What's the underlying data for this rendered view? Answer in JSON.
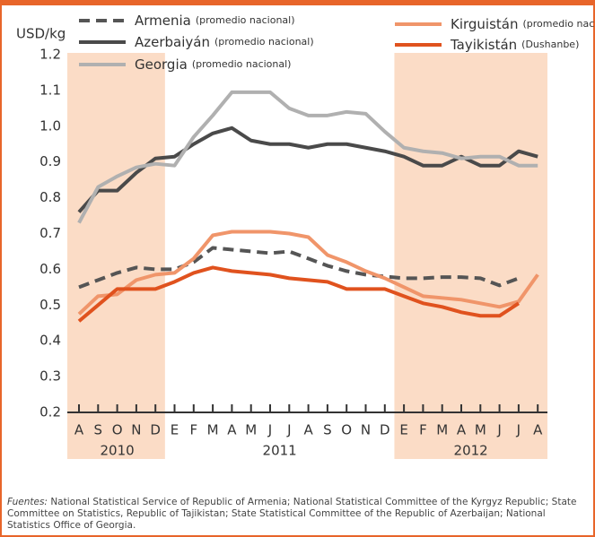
{
  "chart_data": {
    "type": "line",
    "y_label": "USD/kg",
    "categories": [
      "A",
      "S",
      "O",
      "N",
      "D",
      "E",
      "F",
      "M",
      "A",
      "M",
      "J",
      "J",
      "A",
      "S",
      "O",
      "N",
      "D",
      "E",
      "F",
      "M",
      "A",
      "M",
      "J",
      "J",
      "A"
    ],
    "years": [
      "2010",
      "2011",
      "2012"
    ],
    "ylim": [
      0.2,
      1.2
    ],
    "yticks": [
      0.2,
      0.3,
      0.4,
      0.5,
      0.6,
      0.7,
      0.8,
      0.9,
      {
        "value": 1,
        "label": "1.0"
      },
      1.1,
      1.2
    ],
    "series": [
      {
        "name": "Armenia",
        "note": "(promedio nacional)",
        "color": "#555555",
        "dashed": true,
        "values": [
          0.55,
          0.57,
          0.59,
          0.605,
          0.6,
          0.6,
          0.62,
          0.66,
          0.655,
          0.65,
          0.645,
          0.65,
          0.63,
          0.61,
          0.595,
          0.585,
          0.58,
          0.575,
          0.575,
          0.578,
          0.578,
          0.575,
          0.555,
          0.575,
          null
        ]
      },
      {
        "name": "Azerbaiyán",
        "note": "(promedio nacional)",
        "color": "#4a4a4a",
        "dashed": false,
        "values": [
          0.76,
          0.82,
          0.82,
          0.87,
          0.91,
          0.915,
          0.95,
          0.98,
          0.995,
          0.96,
          0.95,
          0.95,
          0.94,
          0.95,
          0.95,
          0.94,
          0.93,
          0.915,
          0.89,
          0.89,
          0.915,
          0.89,
          0.89,
          0.93,
          0.915
        ]
      },
      {
        "name": "Georgia",
        "note": "(promedio nacional)",
        "color": "#b0b0b0",
        "dashed": false,
        "values": [
          0.73,
          0.83,
          0.86,
          0.885,
          0.895,
          0.89,
          0.97,
          1.03,
          1.095,
          1.095,
          1.095,
          1.05,
          1.03,
          1.03,
          1.04,
          1.035,
          0.985,
          0.94,
          0.93,
          0.925,
          0.91,
          0.915,
          0.915,
          0.89,
          0.89
        ]
      },
      {
        "name": "Kirguistán",
        "note": "(promedio nacional)",
        "color": "#f0956a",
        "dashed": false,
        "values": [
          0.475,
          0.525,
          0.53,
          0.57,
          0.585,
          0.59,
          0.63,
          0.695,
          0.705,
          0.705,
          0.705,
          0.7,
          0.69,
          0.64,
          0.62,
          0.595,
          0.575,
          0.55,
          0.525,
          0.52,
          0.515,
          0.505,
          0.495,
          0.51,
          0.585
        ]
      },
      {
        "name": "Tayikistán",
        "note": "(Dushanbe)",
        "color": "#e0521e",
        "dashed": false,
        "values": [
          0.455,
          0.5,
          0.545,
          0.545,
          0.545,
          0.565,
          0.59,
          0.605,
          0.595,
          0.59,
          0.585,
          0.575,
          0.57,
          0.565,
          0.545,
          0.545,
          0.545,
          0.525,
          0.505,
          0.495,
          0.48,
          0.47,
          0.47,
          0.505,
          null
        ]
      }
    ],
    "source": {
      "label": "Fuentes:",
      "text": "National Statistical Service of Republic of Armenia; National Statistical Committee of the Kyrgyz Republic; State Committee on Statistics, Republic of Tajikistan; State Statistical Committee of the Republic of Azerbaijan; National Statistics Office of Georgia."
    }
  }
}
